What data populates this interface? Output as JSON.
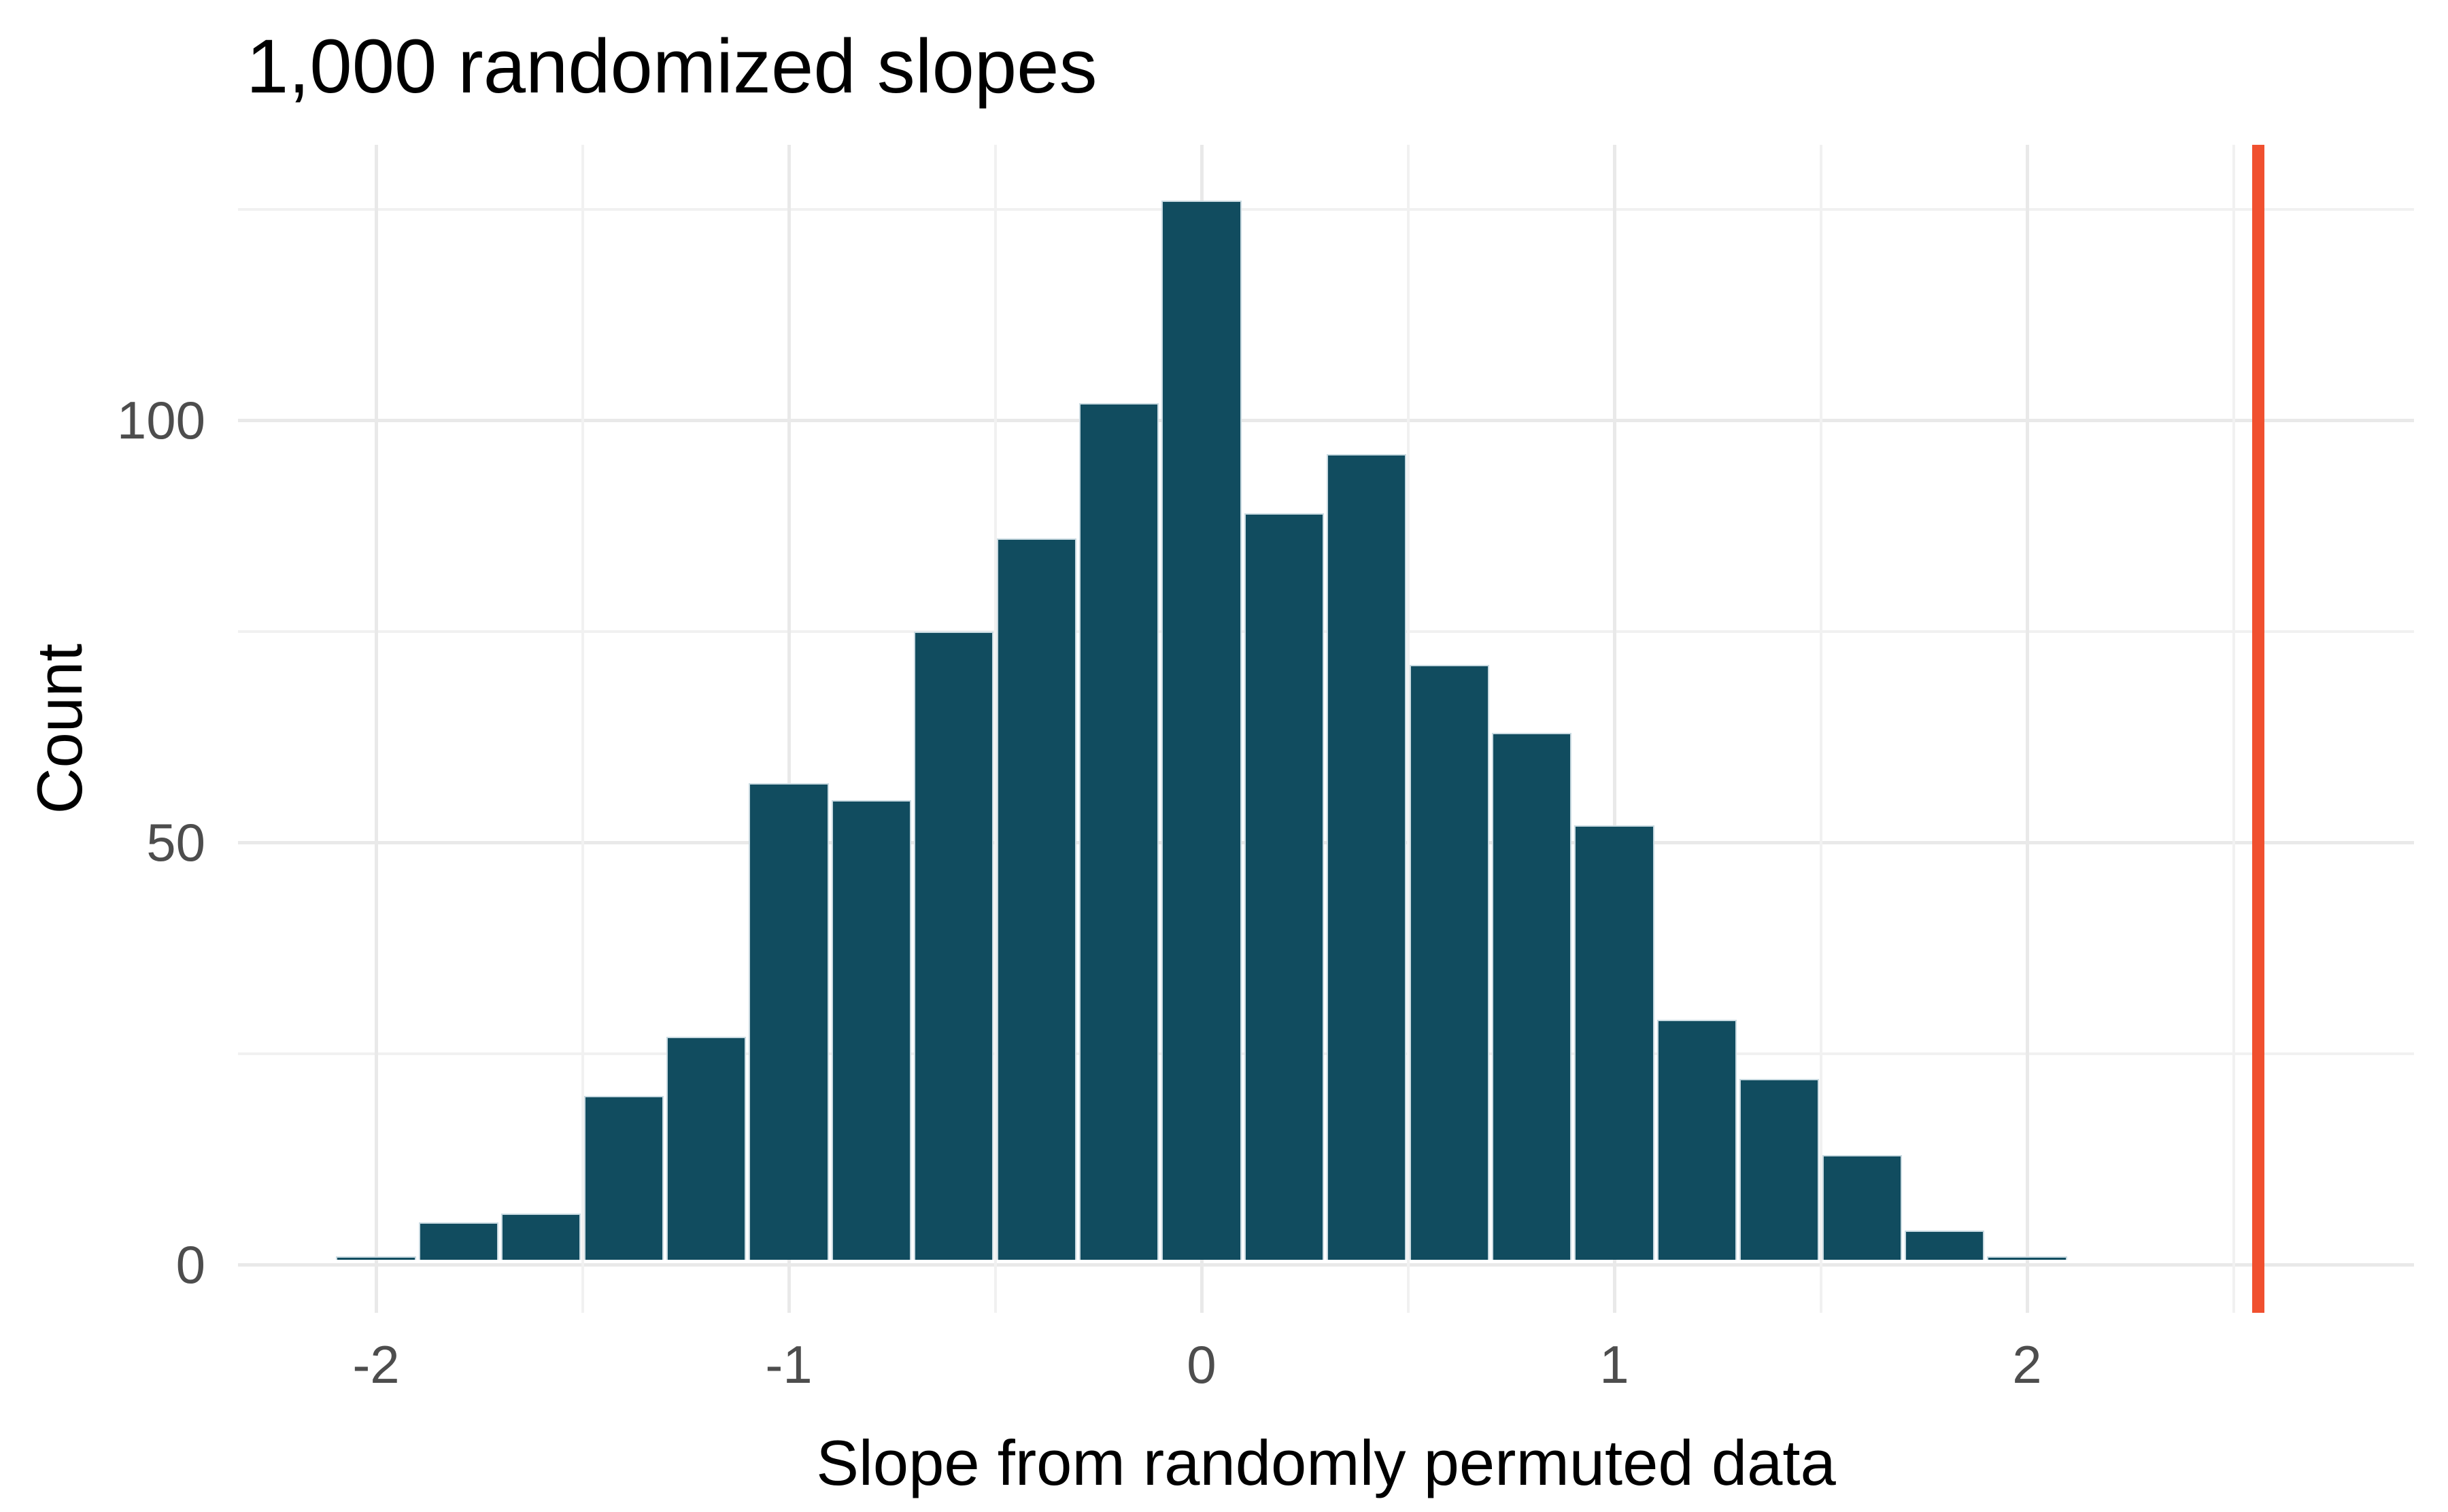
{
  "chart_data": {
    "type": "bar",
    "subtype": "histogram",
    "title": "1,000 randomized slopes",
    "xlabel": "Slope from randomly permuted data",
    "ylabel": "Count",
    "bins": {
      "start": -2.1,
      "width": 0.2,
      "centers": [
        -2.0,
        -1.8,
        -1.6,
        -1.4,
        -1.2,
        -1.0,
        -0.8,
        -0.6,
        -0.4,
        -0.2,
        0.0,
        0.2,
        0.4,
        0.6,
        0.8,
        1.0,
        1.2,
        1.4,
        1.6,
        1.8,
        2.0
      ],
      "counts": [
        1,
        5,
        6,
        20,
        27,
        57,
        55,
        75,
        86,
        102,
        126,
        89,
        96,
        71,
        63,
        52,
        29,
        22,
        13,
        4,
        1
      ]
    },
    "total_count": 1000,
    "x_axis": {
      "tick_values": [
        -2,
        -1,
        0,
        1,
        2
      ],
      "tick_labels": [
        "-2",
        "-1",
        "0",
        "1",
        "2"
      ],
      "minor_gridlines": [
        -1.5,
        -0.5,
        0.5,
        1.5,
        2.5
      ],
      "range": [
        -2.33,
        2.94
      ]
    },
    "y_axis": {
      "tick_values": [
        0,
        50,
        100
      ],
      "tick_labels": [
        "0",
        "50",
        "100"
      ],
      "minor_gridlines": [
        25,
        75,
        125
      ],
      "range": [
        -5.7,
        132.6
      ]
    },
    "vline": {
      "x": 2.56
    },
    "legend": "none",
    "grid": "on",
    "colors": {
      "bar_fill": "#114C5F",
      "bar_edge": "#C9DAE1",
      "vline": "#F0502F",
      "grid_major": "#E9E9E9",
      "grid_minor": "#F1F1F1",
      "tick_label": "#4D4D4D",
      "text": "#000000",
      "background": "#FFFFFF"
    }
  }
}
